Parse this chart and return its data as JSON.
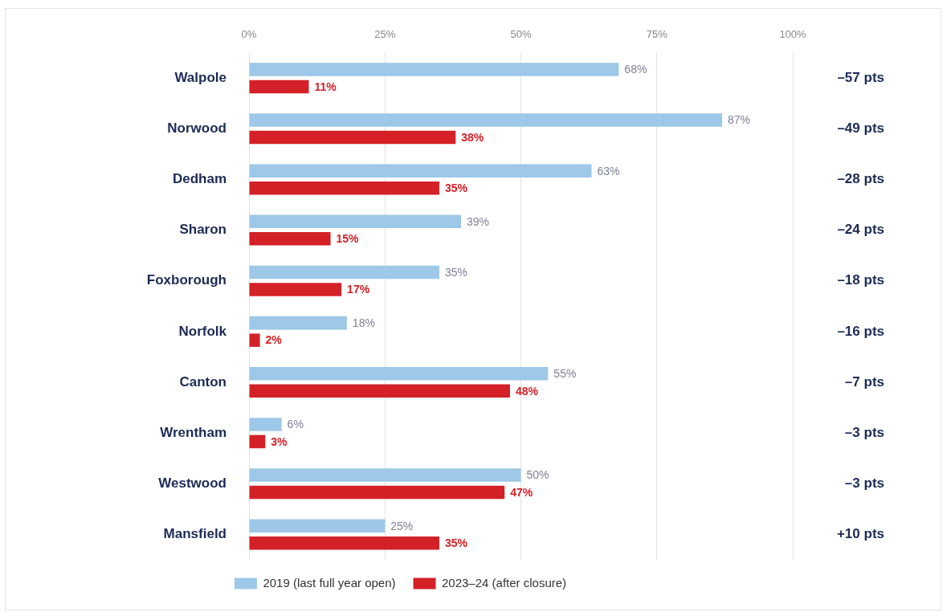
{
  "chart_data": {
    "type": "bar",
    "orientation": "horizontal",
    "categories": [
      "Walpole",
      "Norwood",
      "Dedham",
      "Sharon",
      "Foxborough",
      "Norfolk",
      "Canton",
      "Wrentham",
      "Westwood",
      "Mansfield"
    ],
    "series": [
      {
        "name": "2019 (last full year open)",
        "color": "#9dc8e8",
        "values": [
          68,
          87,
          63,
          39,
          35,
          18,
          55,
          6,
          50,
          25
        ],
        "value_labels": [
          "68%",
          "87%",
          "63%",
          "39%",
          "35%",
          "18%",
          "55%",
          "6%",
          "50%",
          "25%"
        ]
      },
      {
        "name": "2023–24 (after closure)",
        "color": "#d42027",
        "values": [
          11,
          38,
          35,
          15,
          17,
          2,
          48,
          3,
          47,
          35
        ],
        "value_labels": [
          "11%",
          "38%",
          "35%",
          "15%",
          "17%",
          "2%",
          "48%",
          "3%",
          "47%",
          "35%"
        ]
      }
    ],
    "xlim": [
      0,
      100
    ],
    "xticks": [
      {
        "value": 0,
        "label": "0%"
      },
      {
        "value": 25,
        "label": "25%"
      },
      {
        "value": 50,
        "label": "50%"
      },
      {
        "value": 75,
        "label": "75%"
      },
      {
        "value": 100,
        "label": "100%"
      }
    ],
    "grid": "x",
    "legend": "bottom",
    "annotations": [
      "–57 pts",
      "–49 pts",
      "–28 pts",
      "–24 pts",
      "–18 pts",
      "–16 pts",
      "–7 pts",
      "–3 pts",
      "–3 pts",
      "+10 pts"
    ]
  }
}
